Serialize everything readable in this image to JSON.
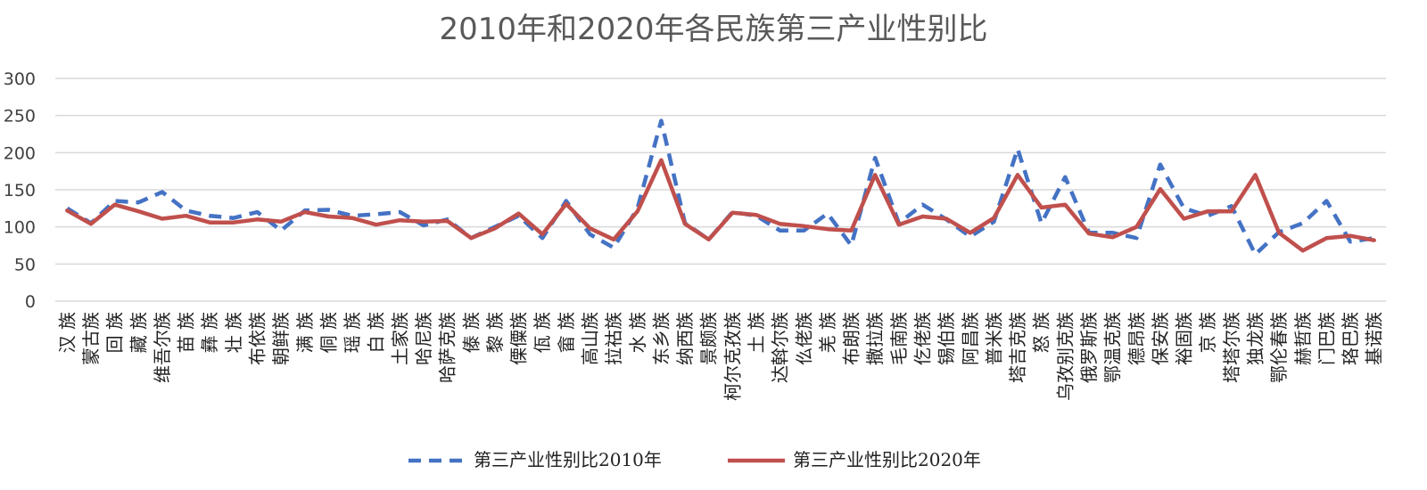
{
  "chart_data": {
    "type": "line",
    "title": "2010年和2020年各民族第三产业性别比",
    "ylim": [
      0,
      300
    ],
    "yticks": [
      "0",
      "50",
      "100",
      "150",
      "200",
      "250",
      "300"
    ],
    "grid": true,
    "legend_position": "bottom",
    "categories": [
      "汉 族",
      "蒙古族",
      "回 族",
      "藏 族",
      "维吾尔族",
      "苗 族",
      "彝 族",
      "壮 族",
      "布依族",
      "朝鲜族",
      "满 族",
      "侗 族",
      "瑶 族",
      "白 族",
      "土家族",
      "哈尼族",
      "哈萨克族",
      "傣 族",
      "黎 族",
      "傈僳族",
      "佤 族",
      "畲 族",
      "高山族",
      "拉祜族",
      "水 族",
      "东乡族",
      "纳西族",
      "景颇族",
      "柯尔克孜族",
      "土 族",
      "达斡尔族",
      "仫佬族",
      "羌 族",
      "布朗族",
      "撒拉族",
      "毛南族",
      "仡佬族",
      "锡伯族",
      "阿昌族",
      "普米族",
      "塔吉克族",
      "怒 族",
      "乌孜别克族",
      "俄罗斯族",
      "鄂温克族",
      "德昂族",
      "保安族",
      "裕固族",
      "京 族",
      "塔塔尔族",
      "独龙族",
      "鄂伦春族",
      "赫哲族",
      "门巴族",
      "珞巴族",
      "基诺族"
    ],
    "series": [
      {
        "name": "第三产业性别比2010年",
        "color": "#4472c4",
        "style": "dashed",
        "values": [
          125,
          105,
          135,
          133,
          147,
          122,
          115,
          112,
          120,
          95,
          122,
          123,
          115,
          117,
          120,
          102,
          110,
          85,
          100,
          115,
          85,
          135,
          90,
          72,
          125,
          243,
          105,
          83,
          120,
          115,
          95,
          95,
          118,
          75,
          193,
          105,
          130,
          110,
          87,
          107,
          205,
          105,
          167,
          92,
          92,
          85,
          184,
          125,
          115,
          128,
          63,
          93,
          105,
          135,
          80,
          85
        ]
      },
      {
        "name": "第三产业性别比2020年",
        "color": "#c0504d",
        "style": "solid",
        "values": [
          122,
          104,
          130,
          121,
          111,
          115,
          106,
          106,
          110,
          107,
          120,
          114,
          112,
          103,
          109,
          107,
          108,
          85,
          98,
          118,
          90,
          131,
          98,
          83,
          121,
          190,
          104,
          83,
          119,
          116,
          104,
          101,
          97,
          95,
          170,
          103,
          114,
          111,
          92,
          112,
          170,
          126,
          130,
          91,
          86,
          100,
          151,
          111,
          121,
          121,
          170,
          92,
          68,
          85,
          88,
          82
        ]
      }
    ]
  }
}
